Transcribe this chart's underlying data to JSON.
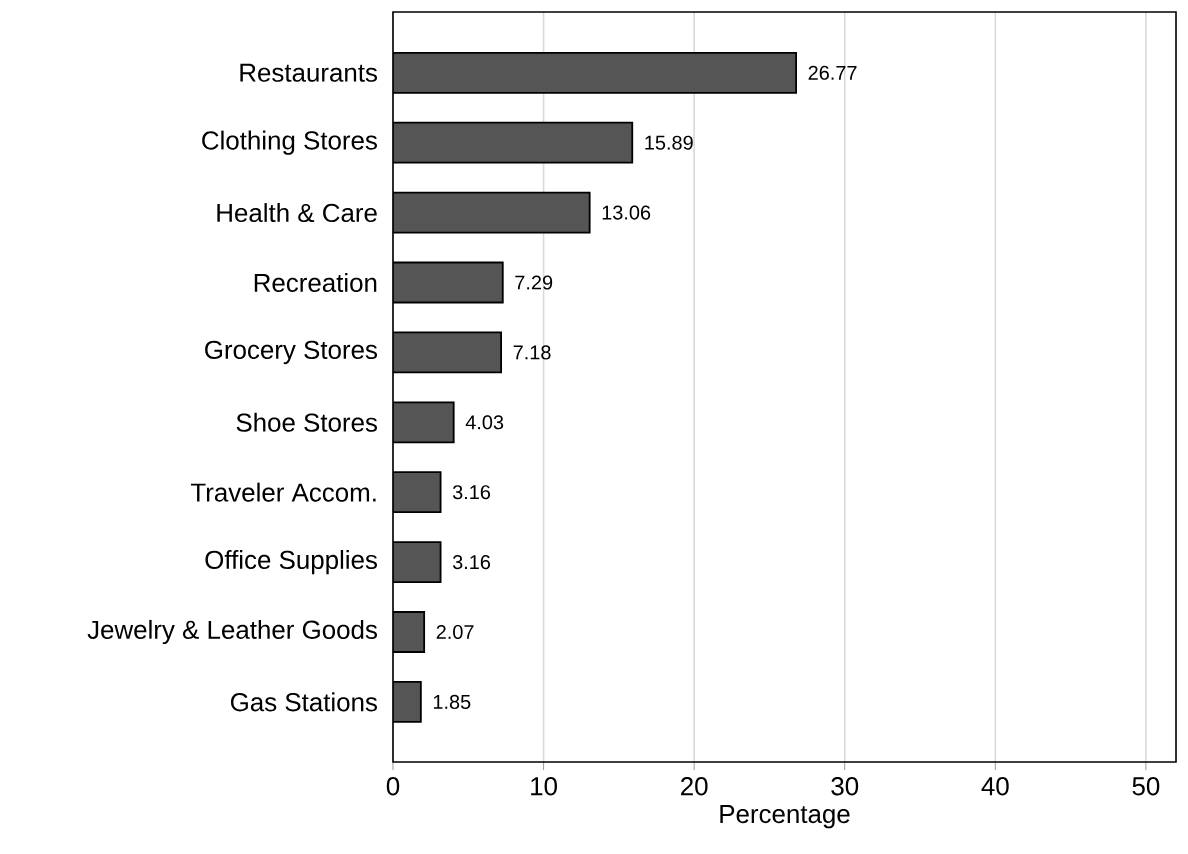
{
  "chart_data": {
    "type": "bar",
    "orientation": "horizontal",
    "xlabel": "Percentage",
    "categories": [
      "Restaurants",
      "Clothing Stores",
      "Health & Care",
      "Recreation",
      "Grocery Stores",
      "Shoe Stores",
      "Traveler Accom.",
      "Office Supplies",
      "Jewelry & Leather Goods",
      "Gas Stations"
    ],
    "values": [
      26.77,
      15.89,
      13.06,
      7.29,
      7.18,
      4.03,
      3.16,
      3.16,
      2.07,
      1.85
    ],
    "color": "#555555",
    "xlim": [
      0,
      52
    ],
    "xticks": [
      0,
      10,
      20,
      30,
      40,
      50
    ],
    "grid": "x",
    "data_labels": true
  }
}
